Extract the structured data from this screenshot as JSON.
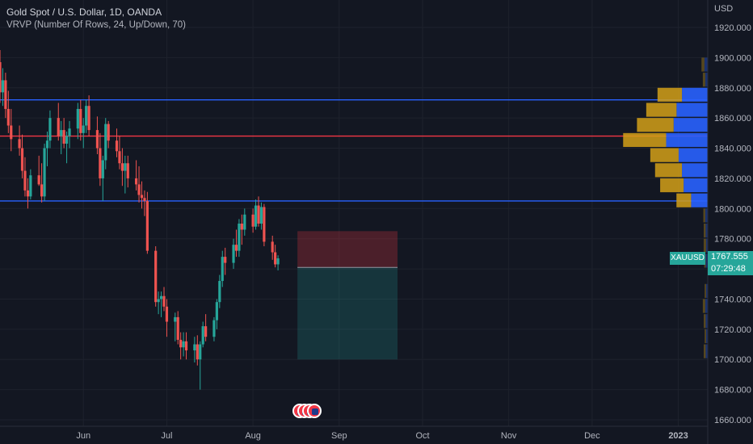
{
  "header": {
    "symbol_title": "Gold Spot / U.S. Dollar, 1D, OANDA",
    "indicator": "VRVP (Number Of Rows, 24, Up/Down, 70)"
  },
  "price_axis": {
    "currency": "USD",
    "current_symbol": "XAUUSD",
    "current_price": "1767.555",
    "countdown": "07:29:48"
  },
  "colors": {
    "background": "#131722",
    "up": "#26a69a",
    "down": "#ef5350",
    "level_line_blue": "#2962ff",
    "level_line_red": "#f23645",
    "vp_up": "#2962ff",
    "vp_down": "#d4a017",
    "grid": "#1e222d"
  },
  "chart_data": {
    "type": "candlestick",
    "title": "Gold Spot / U.S. Dollar, 1D, OANDA",
    "y_axis": {
      "ylim": [
        1656,
        1930
      ],
      "ticks": [
        1660,
        1680,
        1700,
        1720,
        1740,
        1760,
        1780,
        1800,
        1820,
        1840,
        1860,
        1880,
        1900,
        1920
      ],
      "tick_labels": [
        "1660.000",
        "1680.000",
        "1700.000",
        "1720.000",
        "1740.000",
        "1760.000",
        "1780.000",
        "1800.000",
        "1820.000",
        "1840.000",
        "1860.000",
        "1880.000",
        "1900.000",
        "1920.000"
      ]
    },
    "x_axis": {
      "labels": [
        "Jun",
        "Jul",
        "Aug",
        "Sep",
        "Oct",
        "Nov",
        "Dec",
        "2023"
      ],
      "start_date": "2022-05-02",
      "end_date": "2023-01-02"
    },
    "horizontal_levels": [
      {
        "price": 1872,
        "color": "blue"
      },
      {
        "price": 1848,
        "color": "red"
      },
      {
        "price": 1805,
        "color": "blue"
      }
    ],
    "position_box": {
      "start_date": "2022-08-17",
      "end_date": "2022-09-22",
      "entry": 1761,
      "stop": 1785,
      "target": 1700
    },
    "candles": [
      [
        1897,
        1905,
        1870,
        1877
      ],
      [
        1877,
        1893,
        1868,
        1885
      ],
      [
        1885,
        1890,
        1860,
        1866
      ],
      [
        1866,
        1878,
        1850,
        1855
      ],
      [
        1855,
        1866,
        1838,
        1846
      ],
      [
        1846,
        1855,
        1835,
        1840
      ],
      [
        1840,
        1849,
        1820,
        1825
      ],
      [
        1825,
        1834,
        1808,
        1812
      ],
      [
        1812,
        1820,
        1800,
        1808
      ],
      [
        1808,
        1826,
        1806,
        1822
      ],
      [
        1822,
        1835,
        1815,
        1816
      ],
      [
        1816,
        1830,
        1804,
        1808
      ],
      [
        1808,
        1843,
        1805,
        1840
      ],
      [
        1840,
        1851,
        1828,
        1845
      ],
      [
        1845,
        1865,
        1840,
        1860
      ],
      [
        1860,
        1870,
        1845,
        1848
      ],
      [
        1848,
        1858,
        1836,
        1852
      ],
      [
        1852,
        1860,
        1840,
        1843
      ],
      [
        1843,
        1851,
        1830,
        1848
      ],
      [
        1848,
        1858,
        1840,
        1853
      ],
      [
        1853,
        1870,
        1846,
        1866
      ],
      [
        1866,
        1872,
        1845,
        1850
      ],
      [
        1850,
        1860,
        1840,
        1855
      ],
      [
        1855,
        1872,
        1850,
        1868
      ],
      [
        1868,
        1875,
        1848,
        1852
      ],
      [
        1852,
        1861,
        1836,
        1840
      ],
      [
        1840,
        1850,
        1815,
        1820
      ],
      [
        1820,
        1835,
        1805,
        1832
      ],
      [
        1832,
        1860,
        1826,
        1856
      ],
      [
        1856,
        1858,
        1840,
        1845
      ],
      [
        1845,
        1853,
        1834,
        1838
      ],
      [
        1838,
        1848,
        1826,
        1830
      ],
      [
        1830,
        1840,
        1815,
        1825
      ],
      [
        1825,
        1835,
        1810,
        1830
      ],
      [
        1830,
        1835,
        1814,
        1820
      ],
      [
        1820,
        1832,
        1812,
        1816
      ],
      [
        1816,
        1828,
        1804,
        1809
      ],
      [
        1809,
        1818,
        1800,
        1807
      ],
      [
        1807,
        1812,
        1795,
        1805
      ],
      [
        1805,
        1811,
        1770,
        1772
      ],
      [
        1772,
        1775,
        1735,
        1738
      ],
      [
        1738,
        1745,
        1730,
        1740
      ],
      [
        1740,
        1745,
        1728,
        1742
      ],
      [
        1742,
        1748,
        1732,
        1735
      ],
      [
        1735,
        1740,
        1715,
        1725
      ],
      [
        1725,
        1731,
        1712,
        1728
      ],
      [
        1728,
        1732,
        1710,
        1713
      ],
      [
        1713,
        1718,
        1700,
        1708
      ],
      [
        1708,
        1718,
        1702,
        1712
      ],
      [
        1712,
        1718,
        1700,
        1706
      ],
      [
        1706,
        1715,
        1698,
        1710
      ],
      [
        1710,
        1716,
        1696,
        1700
      ],
      [
        1700,
        1712,
        1680,
        1710
      ],
      [
        1710,
        1725,
        1708,
        1722
      ],
      [
        1722,
        1730,
        1712,
        1715
      ],
      [
        1715,
        1728,
        1712,
        1726
      ],
      [
        1726,
        1740,
        1720,
        1738
      ],
      [
        1738,
        1756,
        1734,
        1752
      ],
      [
        1752,
        1772,
        1748,
        1768
      ],
      [
        1768,
        1774,
        1756,
        1764
      ],
      [
        1764,
        1780,
        1760,
        1776
      ],
      [
        1776,
        1786,
        1768,
        1772
      ],
      [
        1772,
        1793,
        1768,
        1790
      ],
      [
        1790,
        1796,
        1776,
        1786
      ],
      [
        1786,
        1800,
        1782,
        1796
      ],
      [
        1796,
        1800,
        1784,
        1788
      ],
      [
        1788,
        1806,
        1786,
        1802
      ],
      [
        1802,
        1808,
        1788,
        1790
      ],
      [
        1790,
        1804,
        1786,
        1801
      ],
      [
        1801,
        1803,
        1775,
        1778
      ],
      [
        1778,
        1782,
        1766,
        1771
      ],
      [
        1771,
        1776,
        1761,
        1763
      ],
      [
        1763,
        1769,
        1759,
        1767
      ]
    ],
    "volume_profile": {
      "row_height": 10,
      "rows": [
        {
          "price": 1875,
          "up": 0.62,
          "down": 0.5
        },
        {
          "price": 1865,
          "up": 0.75,
          "down": 0.62
        },
        {
          "price": 1855,
          "up": 0.82,
          "down": 0.75
        },
        {
          "price": 1845,
          "up": 1.0,
          "down": 0.88
        },
        {
          "price": 1835,
          "up": 0.7,
          "down": 0.58
        },
        {
          "price": 1825,
          "up": 0.62,
          "down": 0.55
        },
        {
          "price": 1815,
          "up": 0.58,
          "down": 0.48
        },
        {
          "price": 1805,
          "up": 0.4,
          "down": 0.3
        },
        {
          "price": 1895,
          "up": 0.08,
          "down": 0.06
        },
        {
          "price": 1885,
          "up": 0.06,
          "down": 0.05
        },
        {
          "price": 1795,
          "up": 0.06,
          "down": 0.04
        },
        {
          "price": 1785,
          "up": 0.05,
          "down": 0.04
        },
        {
          "price": 1775,
          "up": 0.04,
          "down": 0.05
        },
        {
          "price": 1765,
          "up": 0.05,
          "down": 0.03
        },
        {
          "price": 1745,
          "up": 0.04,
          "down": 0.03
        },
        {
          "price": 1735,
          "up": 0.06,
          "down": 0.05
        },
        {
          "price": 1725,
          "up": 0.05,
          "down": 0.04
        },
        {
          "price": 1715,
          "up": 0.04,
          "down": 0.03
        },
        {
          "price": 1705,
          "up": 0.05,
          "down": 0.04
        }
      ]
    }
  }
}
